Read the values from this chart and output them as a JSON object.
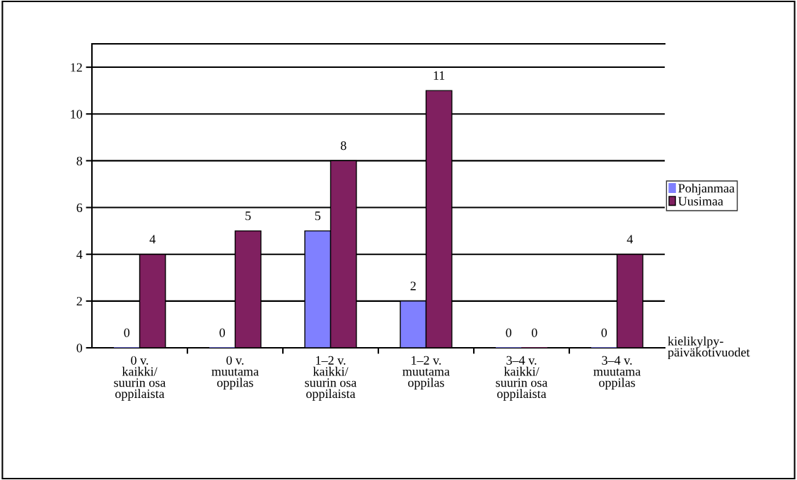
{
  "chart_data": {
    "type": "bar",
    "categories": [
      "0 v.\nkaikki/\nsuurin osa\noppilaista",
      "0 v.\nmuutama\noppilas",
      "1–2 v.\nkaikki/\nsuurin osa\noppilaista",
      "1–2 v.\nmuutama\noppilas",
      "3–4 v.\nkaikki/\nsuurin osa\noppilaista",
      "3–4 v.\nmuutama\noppilas"
    ],
    "series": [
      {
        "name": "Pohjanmaa",
        "color": "#8080ff",
        "values": [
          0,
          0,
          5,
          2,
          0,
          0
        ]
      },
      {
        "name": "Uusimaa",
        "color": "#802060",
        "values": [
          4,
          5,
          8,
          11,
          0,
          4
        ]
      }
    ],
    "xlabel": "kielikylpy-\npäiväkotivuodet",
    "ylim": [
      0,
      13
    ],
    "yticks": [
      0,
      2,
      4,
      6,
      8,
      10,
      12
    ],
    "grid": "y",
    "legend": "right",
    "data_labels": true
  }
}
